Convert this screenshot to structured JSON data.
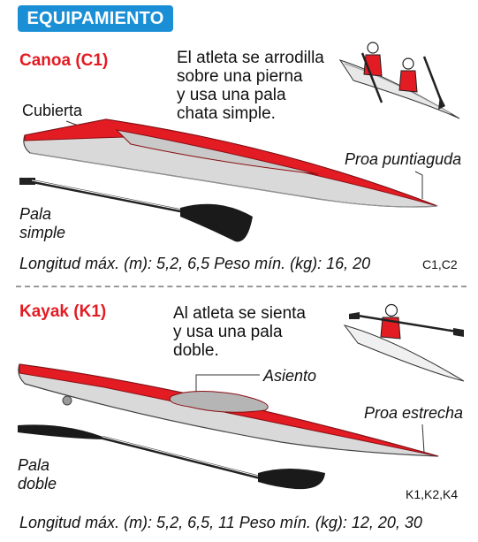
{
  "header": {
    "title": "EQUIPAMIENTO"
  },
  "canoe": {
    "title": "Canoa (C1)",
    "description": [
      "El atleta se arrodilla",
      "sobre una pierna",
      "y usa una pala",
      "chata simple."
    ],
    "deck_label": "Cubierta",
    "bow_label": "Proa puntiaguda",
    "paddle_label": [
      "Pala",
      "simple"
    ],
    "specs": "Longitud máx. (m): 5,2, 6,5   Peso mín. (kg): 16, 20",
    "classes": "C1,C2"
  },
  "kayak": {
    "title": "Kayak (K1)",
    "description": [
      "Al atleta se sienta",
      "y usa una pala",
      "doble."
    ],
    "seat_label": "Asiento",
    "bow_label": "Proa estrecha",
    "paddle_label": [
      "Pala",
      "doble"
    ],
    "classes": "K1,K2,K4",
    "specs": "Longitud máx. (m): 5,2, 6,5, 11  Peso mín. (kg): 12, 20, 30"
  },
  "colors": {
    "header_bg": "#1a8fd6",
    "accent_red": "#e31b23",
    "hull_gray": "#d9d9d9"
  },
  "icons": [
    "canoe-athletes-illustration",
    "kayak-athlete-illustration",
    "single-blade-paddle",
    "double-blade-paddle"
  ]
}
